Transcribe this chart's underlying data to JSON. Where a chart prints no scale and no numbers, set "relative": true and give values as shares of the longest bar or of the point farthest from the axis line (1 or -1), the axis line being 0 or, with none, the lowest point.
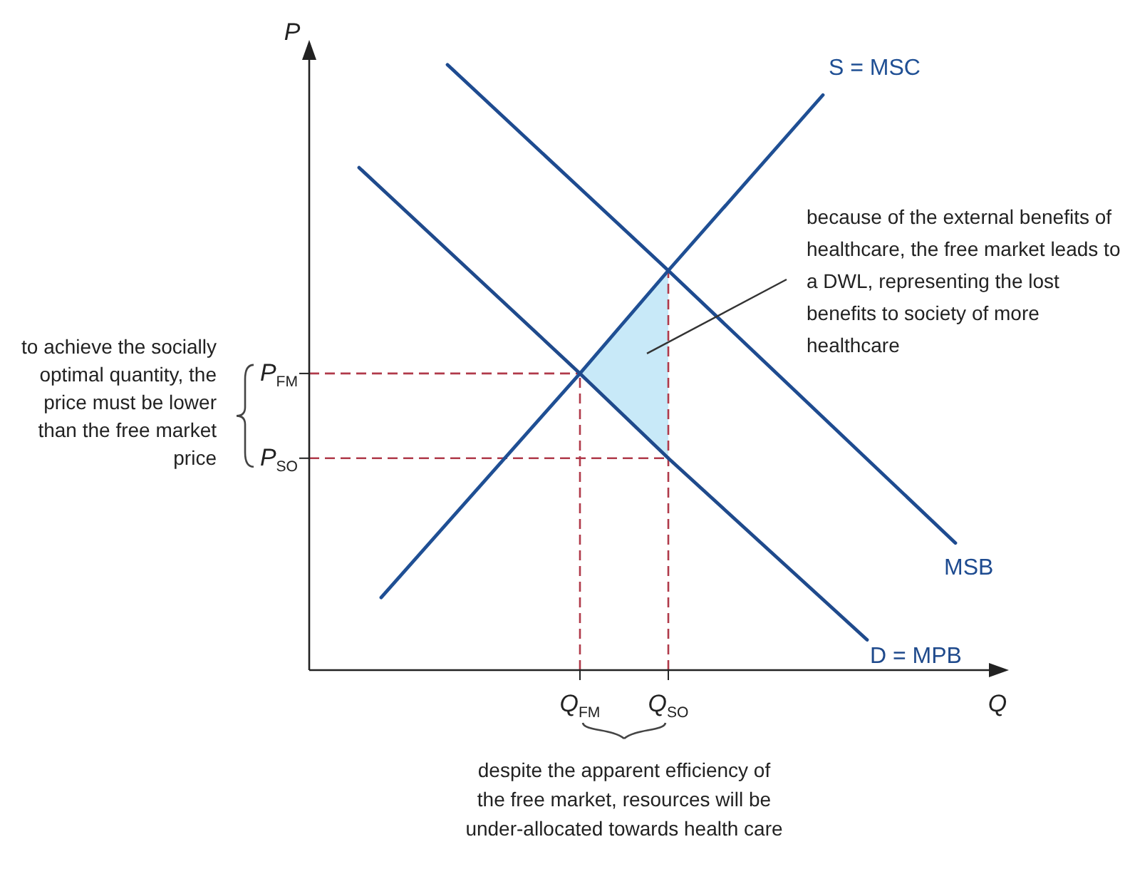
{
  "chart_data": {
    "type": "line",
    "relative": true,
    "xlabel": "Q",
    "ylabel": "P",
    "categories": [
      null,
      null,
      null,
      null,
      null,
      null,
      null,
      null,
      null,
      null,
      null,
      null,
      "Q$_{FM}$",
      null,
      null,
      null,
      "Q$_{SO}$",
      null,
      null,
      null,
      null,
      null,
      null,
      null,
      null,
      null,
      null,
      null,
      null,
      null,
      null
    ],
    "series": [
      {
        "name": "S = MSC",
        "color": "#1f4f94",
        "values": [
          null,
          null,
          null,
          0.12,
          null,
          null,
          null,
          null,
          null,
          null,
          null,
          null,
          0.49,
          null,
          null,
          null,
          0.66,
          null,
          null,
          null,
          null,
          null,
          null,
          0.95,
          null,
          null,
          null,
          null,
          null,
          null,
          null
        ]
      },
      {
        "name": "D = MPB",
        "color": "#1f4a8c",
        "values": [
          null,
          null,
          0.83,
          null,
          null,
          null,
          null,
          null,
          null,
          null,
          null,
          null,
          0.49,
          null,
          null,
          null,
          0.35,
          null,
          null,
          null,
          null,
          null,
          null,
          null,
          null,
          0.05,
          null,
          null,
          null,
          null,
          null
        ]
      },
      {
        "name": "MSB",
        "color": "#1e4b90",
        "values": [
          null,
          null,
          null,
          null,
          null,
          null,
          1.0,
          null,
          null,
          null,
          null,
          null,
          null,
          null,
          null,
          null,
          0.66,
          null,
          null,
          null,
          null,
          null,
          null,
          null,
          null,
          null,
          null,
          null,
          null,
          0.21,
          null
        ]
      },
      {
        "type": "area",
        "color": "#c8e9f8",
        "values": [
          null,
          null,
          null,
          null,
          null,
          null,
          null,
          null,
          null,
          null,
          null,
          null,
          0.49,
          0.53,
          0.57,
          0.62,
          0.66,
          null,
          null,
          null,
          null,
          null,
          null,
          null,
          null,
          null,
          null,
          null,
          null,
          null,
          null
        ]
      }
    ],
    "ref_lines": [
      {
        "axis": "y",
        "value": 0.49,
        "label": "P$_{FM}$",
        "color": "#b03a4a",
        "line_style": "dashed"
      },
      {
        "axis": "y",
        "value": 0.35,
        "label": "P$_{SO}$",
        "color": "#b03a4a",
        "line_style": "dashed"
      },
      {
        "axis": "x",
        "value": "Q$_{FM}$",
        "color": "#b03a4a",
        "line_style": "dashed"
      },
      {
        "axis": "x",
        "value": "Q$_{SO}$",
        "color": "#b03a4a",
        "line_style": "dashed"
      }
    ],
    "annotations": [
      "because of the external benefits of healthcare, the free market leads to a DWL, representing the lost benefits to society of more healthcare",
      "to achieve the socially optimal quantity, the price must be lower than the free market price",
      "despite the apparent efficiency of the free market, resources will be under-allocated towards health care"
    ]
  }
}
